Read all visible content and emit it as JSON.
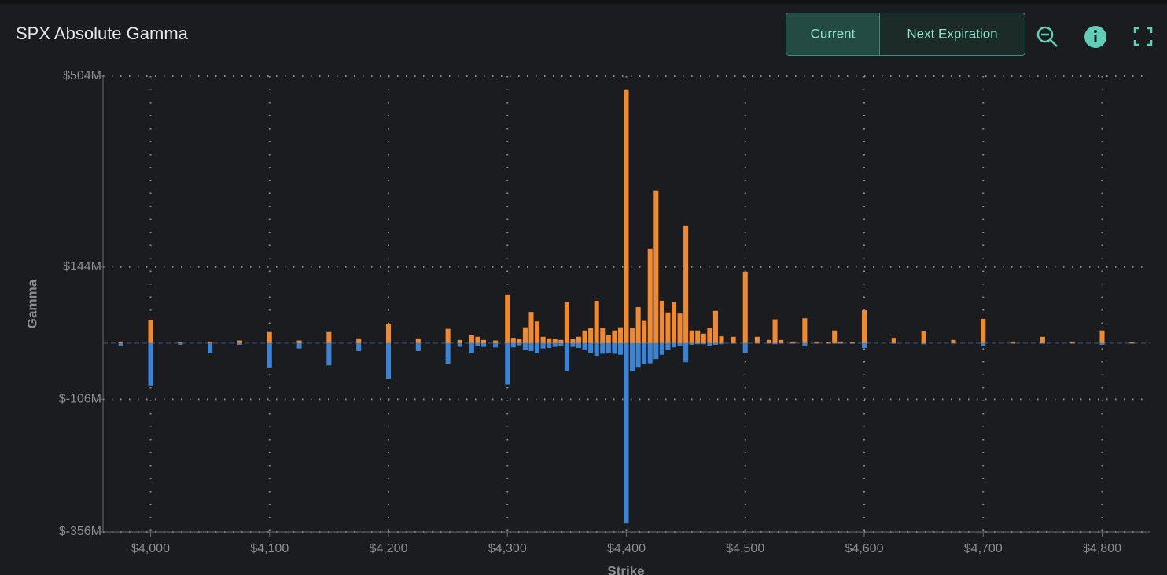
{
  "header": {
    "title": "SPX Absolute Gamma",
    "buttons": [
      "Current",
      "Next Expiration"
    ]
  },
  "chart_data": {
    "type": "bar",
    "x_label": "Strike",
    "y_label": "Gamma",
    "x": [
      3975,
      4000,
      4025,
      4050,
      4075,
      4100,
      4125,
      4150,
      4175,
      4200,
      4225,
      4250,
      4260,
      4270,
      4275,
      4280,
      4290,
      4300,
      4305,
      4310,
      4315,
      4320,
      4325,
      4330,
      4335,
      4340,
      4345,
      4350,
      4355,
      4360,
      4365,
      4370,
      4375,
      4380,
      4385,
      4390,
      4395,
      4400,
      4405,
      4410,
      4415,
      4420,
      4425,
      4430,
      4435,
      4440,
      4445,
      4450,
      4455,
      4460,
      4465,
      4470,
      4475,
      4480,
      4490,
      4500,
      4510,
      4520,
      4525,
      4530,
      4540,
      4550,
      4560,
      4570,
      4575,
      4580,
      4590,
      4600,
      4625,
      4650,
      4675,
      4700,
      4725,
      4750,
      4775,
      4800,
      4825
    ],
    "series": [
      {
        "color": "#f08a2c",
        "values": [
          3,
          44,
          2,
          3,
          5,
          21,
          5,
          21,
          9,
          37,
          9,
          27,
          6,
          16,
          12,
          6,
          5,
          92,
          10,
          8,
          30,
          59,
          41,
          12,
          9,
          8,
          6,
          77,
          8,
          12,
          24,
          28,
          80,
          28,
          16,
          24,
          30,
          479,
          28,
          68,
          42,
          178,
          288,
          80,
          58,
          77,
          56,
          221,
          24,
          24,
          18,
          28,
          61,
          13,
          12,
          135,
          12,
          6,
          45,
          6,
          3,
          47,
          3,
          2,
          24,
          3,
          2,
          62,
          10,
          22,
          6,
          46,
          3,
          12,
          3,
          24,
          2
        ]
      },
      {
        "color": "#3a84d8",
        "values": [
          -5,
          -80,
          -3,
          -19,
          -3,
          -46,
          -10,
          -42,
          -15,
          -67,
          -15,
          -39,
          -7,
          -19,
          -6,
          -7,
          -8,
          -78,
          -8,
          -4,
          -12,
          -15,
          -19,
          -10,
          -9,
          -7,
          -5,
          -52,
          -7,
          -9,
          -13,
          -18,
          -24,
          -20,
          -18,
          -20,
          -22,
          -340,
          -52,
          -45,
          -40,
          -38,
          -30,
          -22,
          -12,
          -8,
          -6,
          -36,
          -3,
          -2,
          -2,
          -6,
          -3,
          -2,
          -1,
          -18,
          -1,
          -1,
          -2,
          -1,
          -1,
          -6,
          -1,
          -1,
          -1,
          -1,
          -1,
          -9,
          -1,
          -2,
          -1,
          -6,
          -1,
          -1,
          -1,
          -3,
          -1
        ]
      }
    ],
    "xlim": [
      3960,
      4840
    ],
    "xticks": [
      {
        "value": 4000,
        "label": "$4,000"
      },
      {
        "value": 4100,
        "label": "$4,100"
      },
      {
        "value": 4200,
        "label": "$4,200"
      },
      {
        "value": 4300,
        "label": "$4,300"
      },
      {
        "value": 4400,
        "label": "$4,400"
      },
      {
        "value": 4500,
        "label": "$4,500"
      },
      {
        "value": 4600,
        "label": "$4,600"
      },
      {
        "value": 4700,
        "label": "$4,700"
      },
      {
        "value": 4800,
        "label": "$4,800"
      }
    ],
    "ylim": [
      -356,
      504
    ],
    "yticks": [
      {
        "value": -356,
        "label": "$-356M"
      },
      {
        "value": -106,
        "label": "$-106M"
      },
      {
        "value": 144,
        "label": "$144M"
      },
      {
        "value": 504,
        "label": "$504M"
      }
    ],
    "grid": true
  }
}
